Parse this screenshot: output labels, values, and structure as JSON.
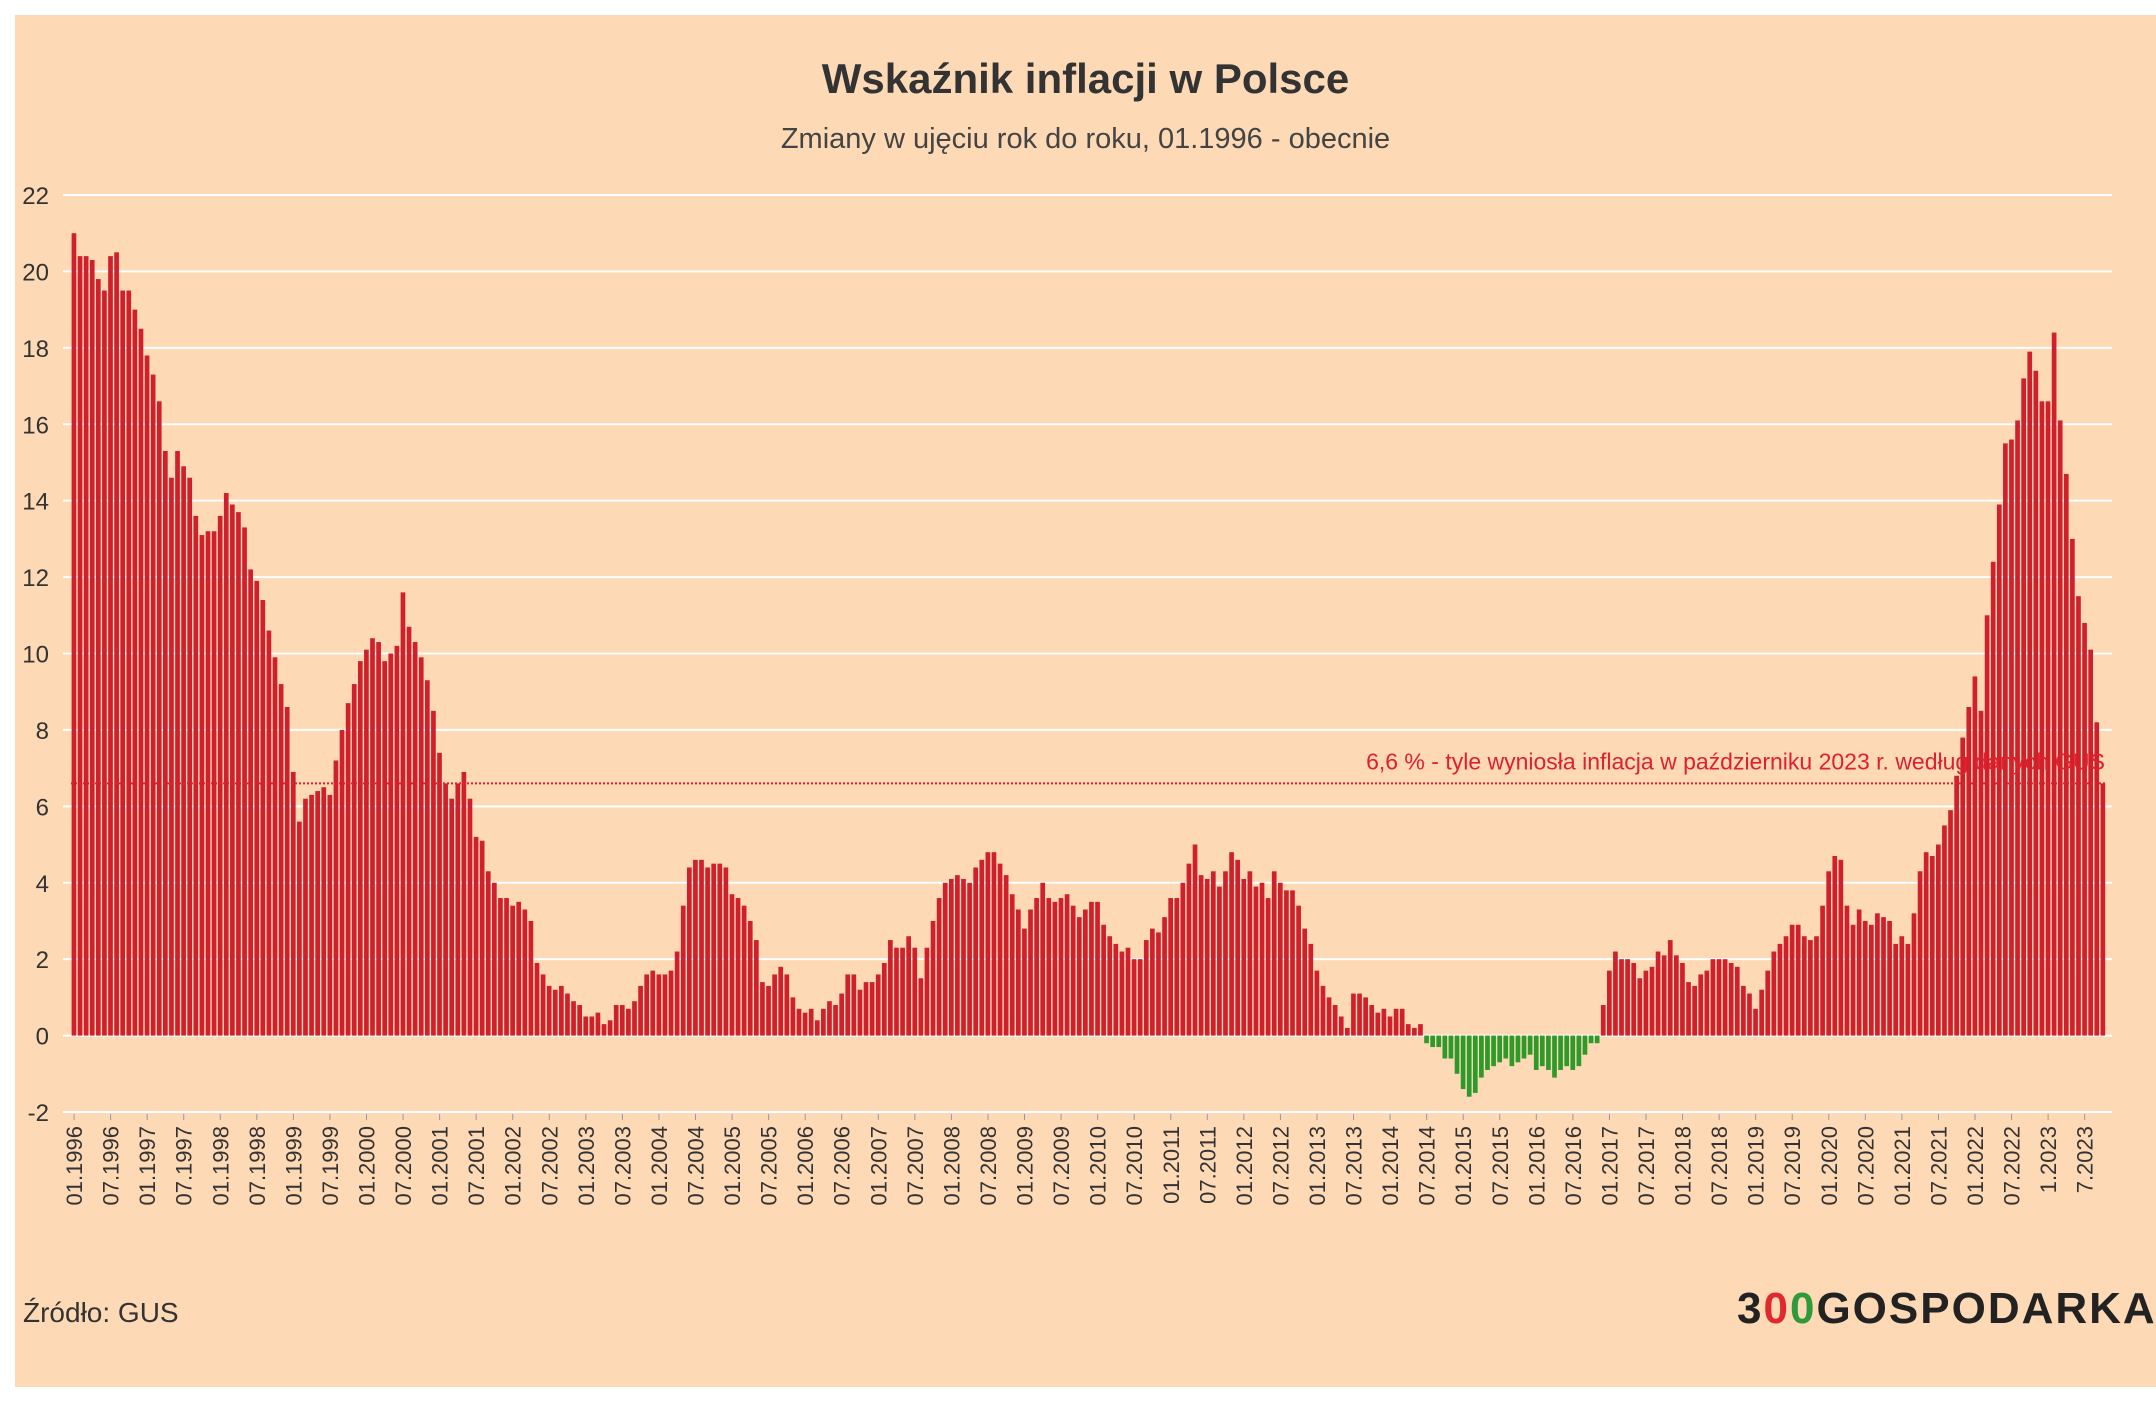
{
  "title": "Wskaźnik inflacji w Polsce",
  "subtitle": "Zmiany w ujęciu rok do roku, 01.1996 - obecnie",
  "source": "Źródło: GUS",
  "logo": {
    "part1": "3",
    "part2": "0",
    "part3": "0",
    "part4": "GOSPODARKA",
    "label": "300GOSPODARKA"
  },
  "colors": {
    "background": "#fdd9b5",
    "positive_bar": "#d0202e",
    "negative_bar": "#2e9a2a",
    "gridline": "#ffffff",
    "reference_line": "#e0202e",
    "axis_text": "#333333"
  },
  "chart_data": {
    "type": "bar",
    "title": "Wskaźnik inflacji w Polsce",
    "subtitle": "Zmiany w ujęciu rok do roku, 01.1996 - obecnie",
    "xlabel": "",
    "ylabel": "",
    "ylim": [
      -2,
      22
    ],
    "yticks": [
      -2,
      0,
      2,
      4,
      6,
      8,
      10,
      12,
      14,
      16,
      18,
      20,
      22
    ],
    "grid": true,
    "legend": "none",
    "start_month": "01.1996",
    "end_month": "10.2023",
    "xtick_labels": [
      "01.1996",
      "07.1996",
      "01.1997",
      "07.1997",
      "01.1998",
      "07.1998",
      "01.1999",
      "07.1999",
      "01.2000",
      "07.2000",
      "01.2001",
      "07.2001",
      "01.2002",
      "07.2002",
      "01.2003",
      "07.2003",
      "01.2004",
      "07.2004",
      "01.2005",
      "07.2005",
      "01.2006",
      "07.2006",
      "01.2007",
      "07.2007",
      "01.2008",
      "07.2008",
      "01.2009",
      "07.2009",
      "01.2010",
      "07.2010",
      "01.2011",
      "07.2011",
      "01.2012",
      "07.2012",
      "01.2013",
      "07.2013",
      "01.2014",
      "07.2014",
      "01.2015",
      "07.2015",
      "01.2016",
      "07.2016",
      "01.2017",
      "07.2017",
      "01.2018",
      "07.2018",
      "01.2019",
      "07.2019",
      "01.2020",
      "07.2020",
      "01.2021",
      "07.2021",
      "01.2022",
      "07.2022",
      "1.2023",
      "7.2023"
    ],
    "series": [
      {
        "values": [
          21.0,
          20.4,
          20.4,
          20.3,
          19.8,
          19.5,
          20.4,
          20.5,
          19.5,
          19.5,
          19.0,
          18.5,
          17.8,
          17.3,
          16.6,
          15.3,
          14.6,
          15.3,
          14.9,
          14.6,
          13.6,
          13.1,
          13.2,
          13.2,
          13.6,
          14.2,
          13.9,
          13.7,
          13.3,
          12.2,
          11.9,
          11.4,
          10.6,
          9.9,
          9.2,
          8.6,
          6.9,
          5.6,
          6.2,
          6.3,
          6.4,
          6.5,
          6.3,
          7.2,
          8.0,
          8.7,
          9.2,
          9.8,
          10.1,
          10.4,
          10.3,
          9.8,
          10.0,
          10.2,
          11.6,
          10.7,
          10.3,
          9.9,
          9.3,
          8.5,
          7.4,
          6.6,
          6.2,
          6.6,
          6.9,
          6.2,
          5.2,
          5.1,
          4.3,
          4.0,
          3.6,
          3.6,
          3.4,
          3.5,
          3.3,
          3.0,
          1.9,
          1.6,
          1.3,
          1.2,
          1.3,
          1.1,
          0.9,
          0.8,
          0.5,
          0.5,
          0.6,
          0.3,
          0.4,
          0.8,
          0.8,
          0.7,
          0.9,
          1.3,
          1.6,
          1.7,
          1.6,
          1.6,
          1.7,
          2.2,
          3.4,
          4.4,
          4.6,
          4.6,
          4.4,
          4.5,
          4.5,
          4.4,
          3.7,
          3.6,
          3.4,
          3.0,
          2.5,
          1.4,
          1.3,
          1.6,
          1.8,
          1.6,
          1.0,
          0.7,
          0.6,
          0.7,
          0.4,
          0.7,
          0.9,
          0.8,
          1.1,
          1.6,
          1.6,
          1.2,
          1.4,
          1.4,
          1.6,
          1.9,
          2.5,
          2.3,
          2.3,
          2.6,
          2.3,
          1.5,
          2.3,
          3.0,
          3.6,
          4.0,
          4.1,
          4.2,
          4.1,
          4.0,
          4.4,
          4.6,
          4.8,
          4.8,
          4.5,
          4.2,
          3.7,
          3.3,
          2.8,
          3.3,
          3.6,
          4.0,
          3.6,
          3.5,
          3.6,
          3.7,
          3.4,
          3.1,
          3.3,
          3.5,
          3.5,
          2.9,
          2.6,
          2.4,
          2.2,
          2.3,
          2.0,
          2.0,
          2.5,
          2.8,
          2.7,
          3.1,
          3.6,
          3.6,
          4.0,
          4.5,
          5.0,
          4.2,
          4.1,
          4.3,
          3.9,
          4.3,
          4.8,
          4.6,
          4.1,
          4.3,
          3.9,
          4.0,
          3.6,
          4.3,
          4.0,
          3.8,
          3.8,
          3.4,
          2.8,
          2.4,
          1.7,
          1.3,
          1.0,
          0.8,
          0.5,
          0.2,
          1.1,
          1.1,
          1.0,
          0.8,
          0.6,
          0.7,
          0.5,
          0.7,
          0.7,
          0.3,
          0.2,
          0.3,
          -0.2,
          -0.3,
          -0.3,
          -0.6,
          -0.6,
          -1.0,
          -1.4,
          -1.6,
          -1.5,
          -1.1,
          -0.9,
          -0.8,
          -0.7,
          -0.6,
          -0.8,
          -0.7,
          -0.6,
          -0.5,
          -0.9,
          -0.8,
          -0.9,
          -1.1,
          -0.9,
          -0.8,
          -0.9,
          -0.8,
          -0.5,
          -0.2,
          -0.2,
          0.8,
          1.7,
          2.2,
          2.0,
          2.0,
          1.9,
          1.5,
          1.7,
          1.8,
          2.2,
          2.1,
          2.5,
          2.1,
          1.9,
          1.4,
          1.3,
          1.6,
          1.7,
          2.0,
          2.0,
          2.0,
          1.9,
          1.8,
          1.3,
          1.1,
          0.7,
          1.2,
          1.7,
          2.2,
          2.4,
          2.6,
          2.9,
          2.9,
          2.6,
          2.5,
          2.6,
          3.4,
          4.3,
          4.7,
          4.6,
          3.4,
          2.9,
          3.3,
          3.0,
          2.9,
          3.2,
          3.1,
          3.0,
          2.4,
          2.6,
          2.4,
          3.2,
          4.3,
          4.8,
          4.7,
          5.0,
          5.5,
          5.9,
          6.8,
          7.8,
          8.6,
          9.4,
          8.5,
          11.0,
          12.4,
          13.9,
          15.5,
          15.6,
          16.1,
          17.2,
          17.9,
          17.4,
          16.6,
          16.6,
          18.4,
          16.1,
          14.7,
          13.0,
          11.5,
          10.8,
          10.1,
          8.2,
          6.6
        ]
      }
    ],
    "annotations": [
      {
        "y": 6.6,
        "text": "6,6 % - tyle wyniosła inflacja w październiku 2023 r. według danych GUS"
      }
    ]
  }
}
